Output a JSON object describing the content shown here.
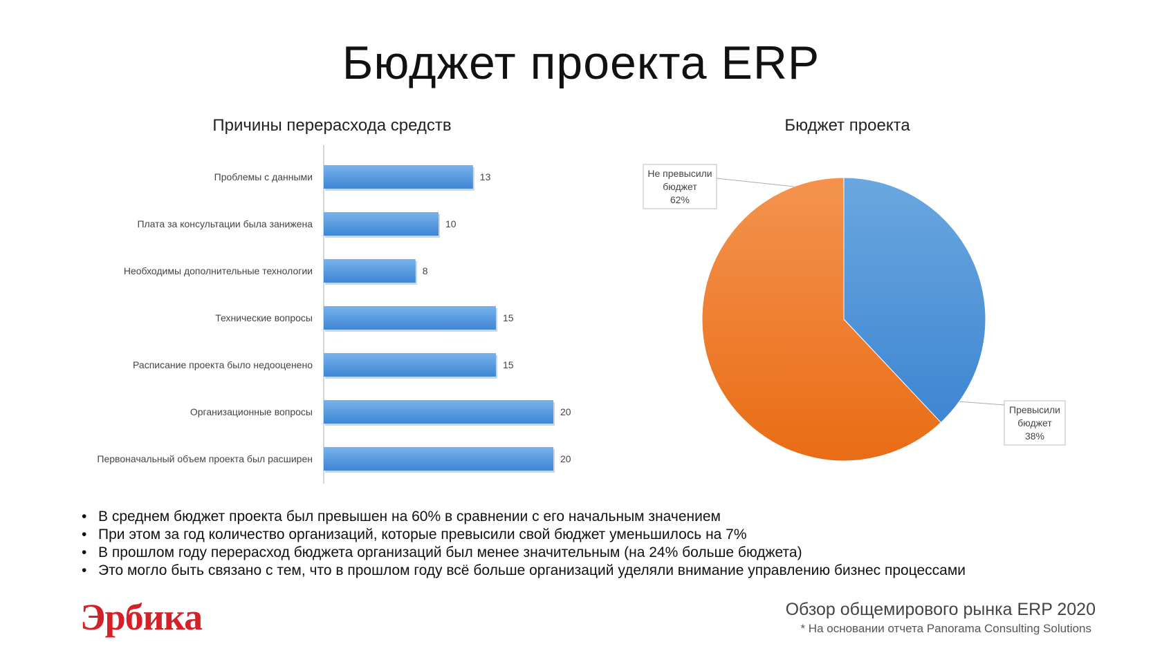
{
  "title": "Бюджет проекта ERP",
  "charts_meta": {
    "bar_color": "#5a9be0",
    "pie_colors": [
      "#5b9bd9",
      "#f07d2a"
    ]
  },
  "chart_data": [
    {
      "type": "bar",
      "orientation": "horizontal",
      "title": "Причины перерасхода средств",
      "categories": [
        "Проблемы с данными",
        "Плата за консультации была занижена",
        "Необходимы дополнительные технологии",
        "Технические вопросы",
        "Расписание проекта было недооценено",
        "Организационные вопросы",
        "Первоначальный объем проекта был расширен"
      ],
      "values": [
        13,
        10,
        8,
        15,
        15,
        20,
        20
      ],
      "xlim": [
        0,
        20
      ],
      "grid": false
    },
    {
      "type": "pie",
      "title": "Бюджет проекта",
      "slices": [
        {
          "name": "Превысили бюджет",
          "value": 38,
          "label": "Превысили\nбюджет\n38%"
        },
        {
          "name": "Не превысили бюджет",
          "value": 62,
          "label": "Не превысили\nбюджет\n62%"
        }
      ]
    }
  ],
  "bullets": [
    "В среднем бюджет проекта был превышен на 60% в сравнении с его начальным значением",
    "При этом за год количество организаций, которые превысили свой бюджет уменьшилось на 7%",
    "В прошлом году перерасход бюджета организаций был менее значительным (на 24% больше бюджета)",
    "Это могло быть связано с тем, что в прошлом году всё больше организаций уделяли внимание управлению бизнес процессами"
  ],
  "footer": {
    "logo": "Эрбика",
    "report_title": "Обзор общемирового рынка ERP 2020",
    "report_note": "* На основании отчета Panorama Consulting Solutions"
  }
}
